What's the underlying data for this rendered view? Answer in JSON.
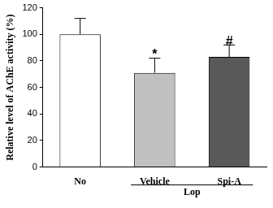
{
  "chart_data": {
    "type": "bar",
    "y_label": "Relative level of AChE activity (%)",
    "categories": [
      "No",
      "Vehicle",
      "Spi-A"
    ],
    "values": [
      100,
      71,
      83
    ],
    "errors": [
      12,
      11,
      9
    ],
    "colors": [
      "#ffffff",
      "#c0c0c0",
      "#595959"
    ],
    "annotations": [
      {
        "category": "Vehicle",
        "text": "*"
      },
      {
        "category": "Spi-A",
        "text": "#"
      }
    ],
    "group_label": {
      "text": "Lop",
      "categories": [
        "Vehicle",
        "Spi-A"
      ]
    },
    "ylim": [
      0,
      120
    ],
    "yticks": [
      0,
      20,
      40,
      60,
      80,
      100,
      120
    ],
    "grid": false
  }
}
